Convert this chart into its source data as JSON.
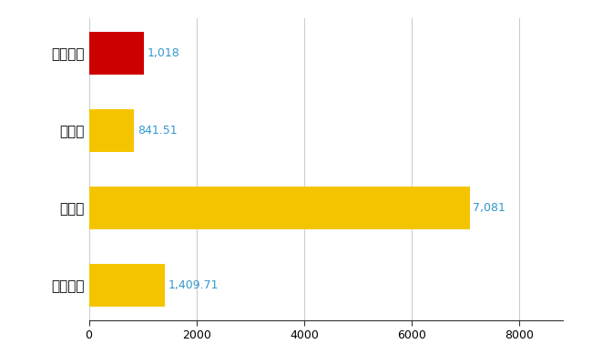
{
  "categories": [
    "八重瀬町",
    "県平均",
    "県最大",
    "全国平均"
  ],
  "values": [
    1018,
    841.51,
    7081,
    1409.71
  ],
  "labels": [
    "1,018",
    "841.51",
    "7,081",
    "1,409.71"
  ],
  "bar_colors": [
    "#cc0000",
    "#f5c400",
    "#f5c400",
    "#f5c400"
  ],
  "xlim": [
    0,
    8800
  ],
  "xticks": [
    0,
    2000,
    4000,
    6000,
    8000
  ],
  "xtick_labels": [
    "0",
    "2000",
    "4000",
    "6000",
    "8000"
  ],
  "background_color": "#ffffff",
  "grid_color": "#cccccc",
  "label_color": "#3399cc",
  "ylabel_fontsize": 11,
  "value_fontsize": 9
}
